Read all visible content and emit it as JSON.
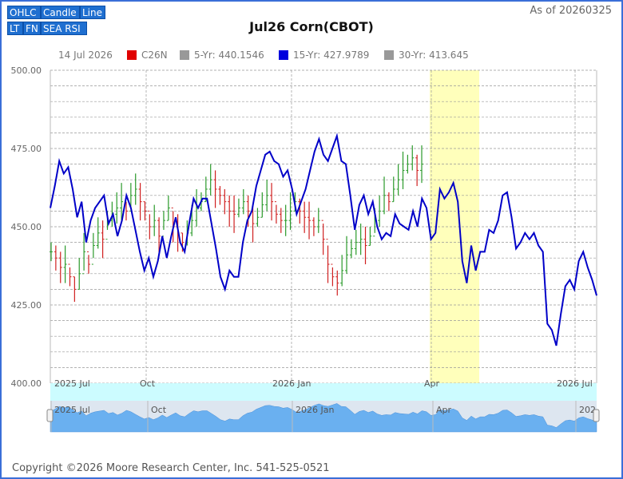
{
  "toolbar": {
    "buttons": [
      "OHLC",
      "Candle",
      "Line",
      "LT",
      "FN",
      "SEA RSI"
    ]
  },
  "header": {
    "as_of": "As of 20260325"
  },
  "legend": {
    "date": "14 Jul 2026",
    "items": [
      {
        "label": "C26N",
        "color": "#e00000"
      },
      {
        "label": "5-Yr: 440.1546",
        "color": "#999999"
      },
      {
        "label": "15-Yr: 427.9789",
        "color": "#0000dd"
      },
      {
        "label": "30-Yr: 413.645",
        "color": "#999999"
      }
    ]
  },
  "footer": {
    "copyright": "Copyright ©2026 Moore Research Center, Inc. 541-525-0521"
  },
  "chart_data": {
    "type": "line",
    "title": "Jul26 Corn(CBOT)",
    "ylim": [
      400,
      500
    ],
    "y_ticks": [
      "500.00",
      "475.00",
      "450.00",
      "425.00",
      "400.00"
    ],
    "x_ticks": [
      "2025 Jul",
      "Oct",
      "2026 Jan",
      "Apr",
      "2026 Jul"
    ],
    "navigator_ticks": [
      "2025 Jul",
      "Oct",
      "2026 Jan",
      "Apr",
      "202"
    ],
    "highlight_window": [
      "Apr 1",
      "Apr 30"
    ],
    "grid": true,
    "series": [
      {
        "name": "15-Yr: 427.9789",
        "color": "#0000dd",
        "values": [
          456,
          463,
          471,
          467,
          469,
          462,
          453,
          458,
          445,
          452,
          456,
          458,
          460,
          451,
          454,
          447,
          452,
          460,
          456,
          449,
          442,
          436,
          440,
          434,
          439,
          447,
          440,
          447,
          453,
          445,
          442,
          451,
          459,
          456,
          459,
          459,
          451,
          443,
          434,
          430,
          436,
          434,
          434,
          445,
          452,
          455,
          463,
          468,
          473,
          474,
          471,
          470,
          466,
          468,
          462,
          454,
          458,
          462,
          468,
          474,
          478,
          473,
          471,
          475,
          479,
          471,
          470,
          460,
          449,
          457,
          460,
          454,
          458,
          450,
          446,
          448,
          447,
          454,
          451,
          450,
          449,
          455,
          450,
          459,
          456,
          446,
          448,
          462,
          459,
          461,
          464,
          458,
          439,
          432,
          444,
          436,
          442,
          442,
          449,
          448,
          452,
          460,
          461,
          453,
          443,
          445,
          448,
          446,
          448,
          444,
          442,
          419,
          417,
          412,
          422,
          431,
          433,
          430,
          439,
          442,
          437,
          433,
          428
        ]
      },
      {
        "name": "C26N",
        "type": "ohlc",
        "values": [
          442,
          440,
          437,
          438,
          434,
          430,
          435,
          442,
          438,
          444,
          448,
          446,
          452,
          454,
          456,
          458,
          455,
          460,
          462,
          458,
          455,
          450,
          452,
          447,
          452,
          456,
          450,
          448,
          445,
          448,
          452,
          456,
          458,
          462,
          465,
          462,
          460,
          458,
          455,
          454,
          456,
          458,
          455,
          451,
          453,
          457,
          460,
          458,
          454,
          452,
          452,
          455,
          458,
          455,
          453,
          452,
          450,
          452,
          446,
          438,
          434,
          432,
          436,
          441,
          443,
          445,
          446,
          444,
          447,
          452,
          455,
          460,
          458,
          462,
          465,
          468,
          470,
          472,
          468,
          470
        ]
      }
    ]
  }
}
